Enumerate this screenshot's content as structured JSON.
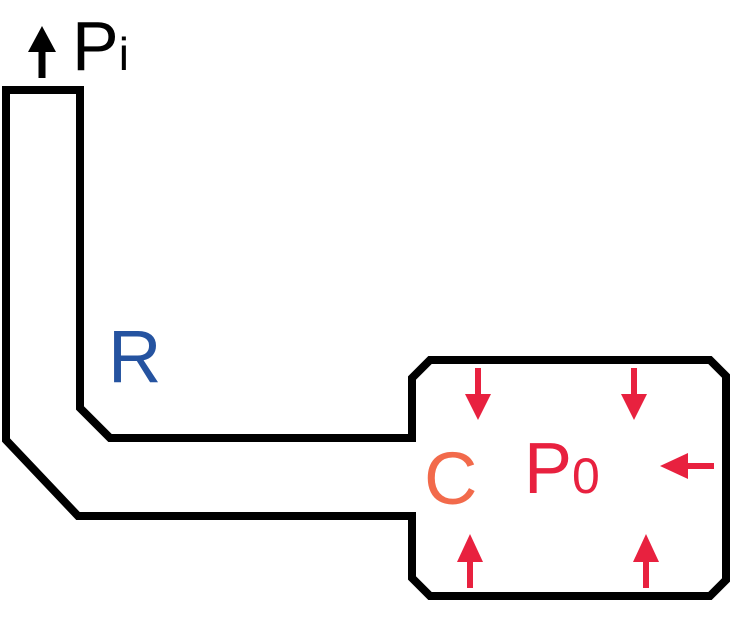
{
  "labels": {
    "pi_main": "P",
    "pi_sub": "i",
    "r": "R",
    "c": "C",
    "p0_main": "P",
    "p0_sub": "0"
  },
  "colors": {
    "outline": "#000000",
    "resistance": "#2553a0",
    "capacitance": "#f26a4b",
    "pressure": "#e8213f",
    "background": "#ffffff"
  },
  "icons": {
    "outflow_arrow": "arrow-up-icon",
    "pressure_arrows": [
      "arrow-down-icon",
      "arrow-down-icon",
      "arrow-left-icon",
      "arrow-up-icon",
      "arrow-up-icon"
    ]
  }
}
